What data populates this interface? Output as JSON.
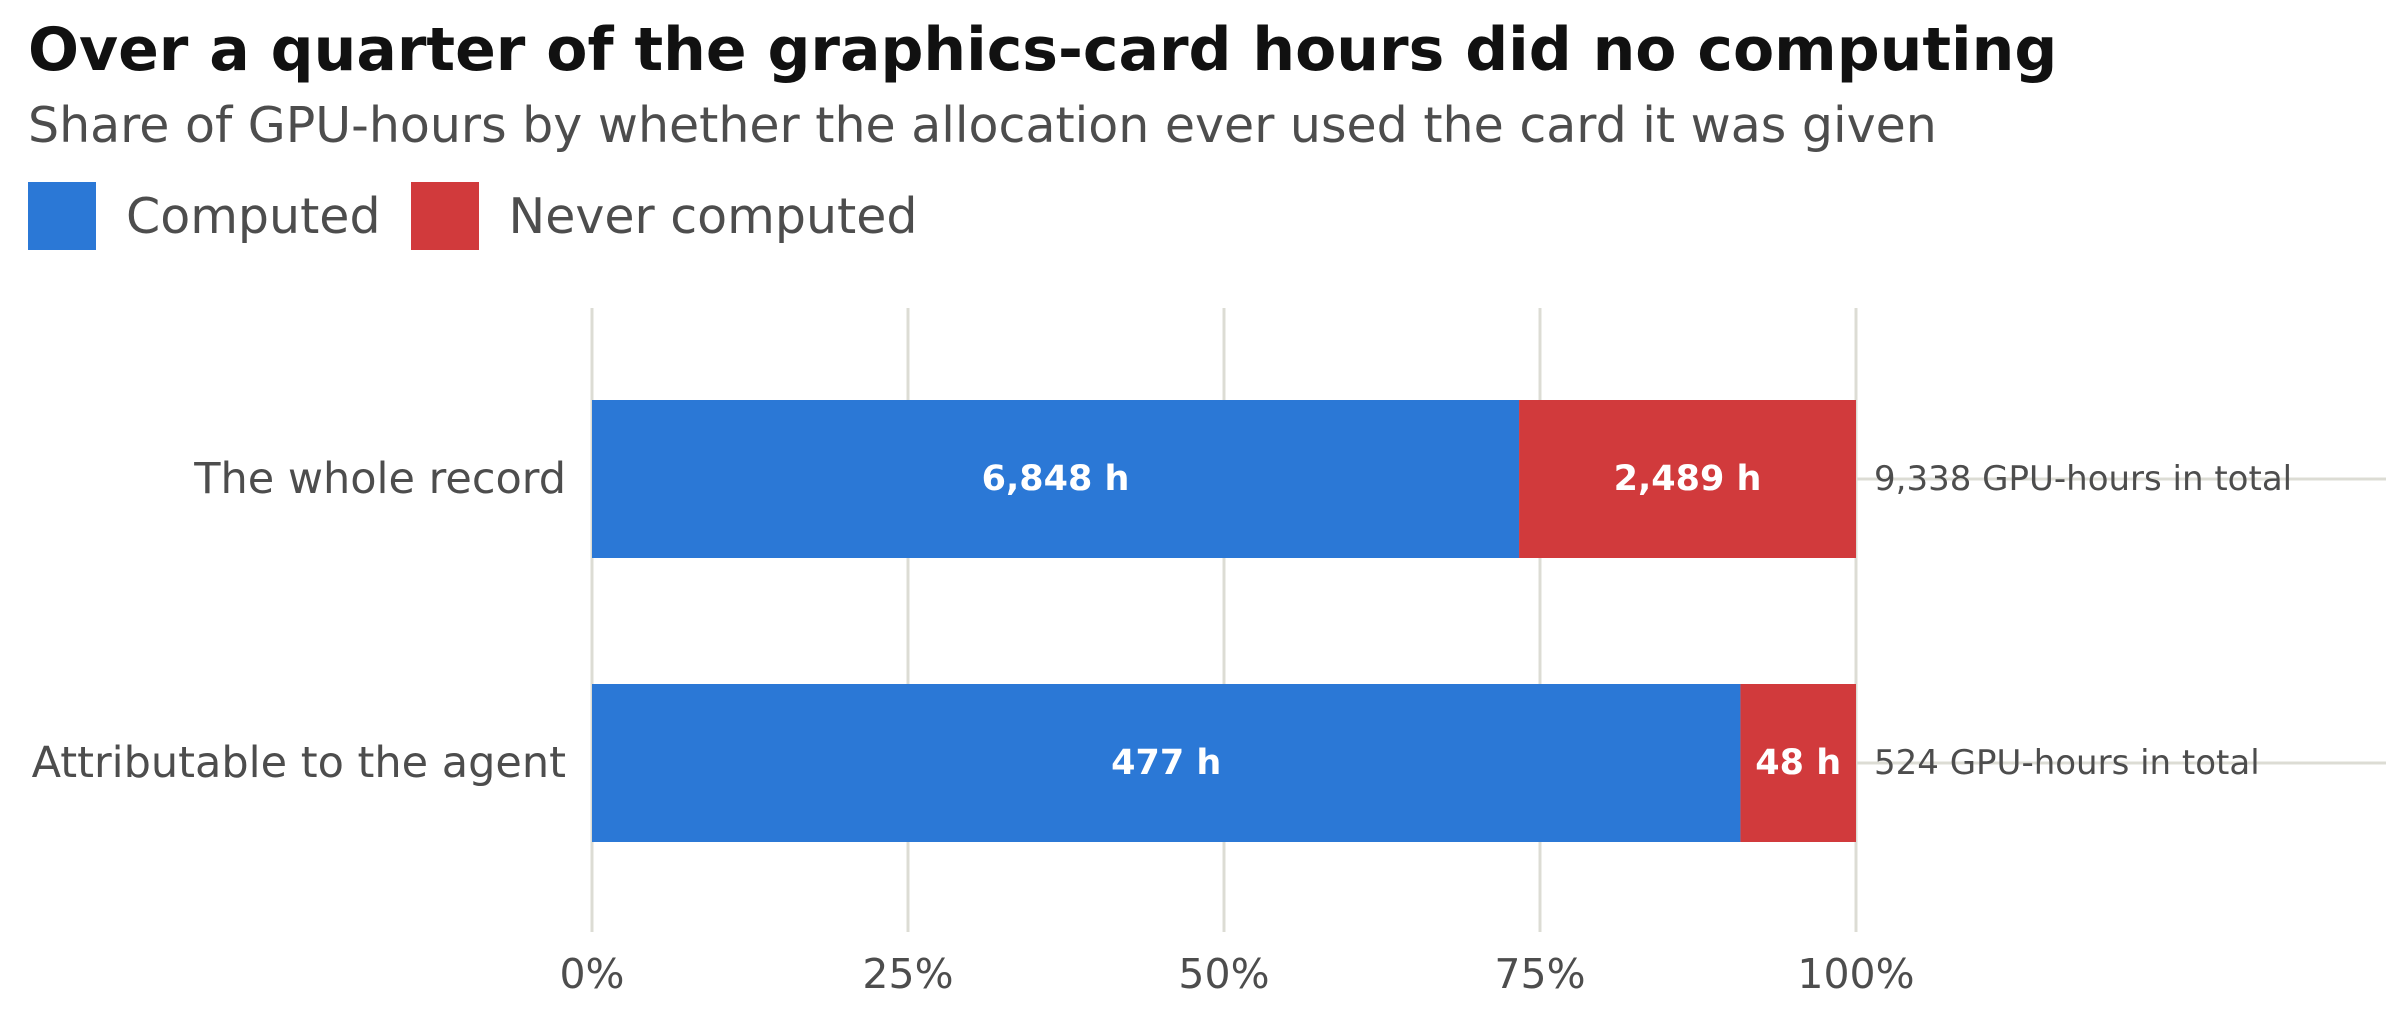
{
  "chart_data": {
    "type": "bar",
    "orientation": "horizontal",
    "stacked": "percent",
    "title": "Over a quarter of the graphics-card hours did no computing",
    "subtitle": "Share of GPU-hours by whether the allocation ever used the card it was given",
    "categories": [
      "The whole record",
      "Attributable to the agent"
    ],
    "series": [
      {
        "name": "Computed",
        "color": "#2b78d6",
        "values": [
          6848,
          477
        ],
        "data_labels": [
          "6,848 h",
          "477 h"
        ]
      },
      {
        "name": "Never computed",
        "color": "#d13a3c",
        "values": [
          2489,
          48
        ],
        "data_labels": [
          "2,489 h",
          "48 h"
        ]
      }
    ],
    "totals": [
      9338,
      524
    ],
    "total_labels": [
      "9,338 GPU-hours in total",
      "524 GPU-hours in total"
    ],
    "x_ticks": [
      0,
      25,
      50,
      75,
      100
    ],
    "x_tick_labels": [
      "0%",
      "25%",
      "50%",
      "75%",
      "100%"
    ],
    "xlim": [
      0,
      100
    ],
    "xlabel": "",
    "ylabel": "",
    "grid": true,
    "legend_position": "top-left",
    "colors": {
      "gridline": "#dcdcd4",
      "axis_text": "#4d4d4d",
      "bar_label": "#ffffff",
      "title": "#111111"
    }
  }
}
